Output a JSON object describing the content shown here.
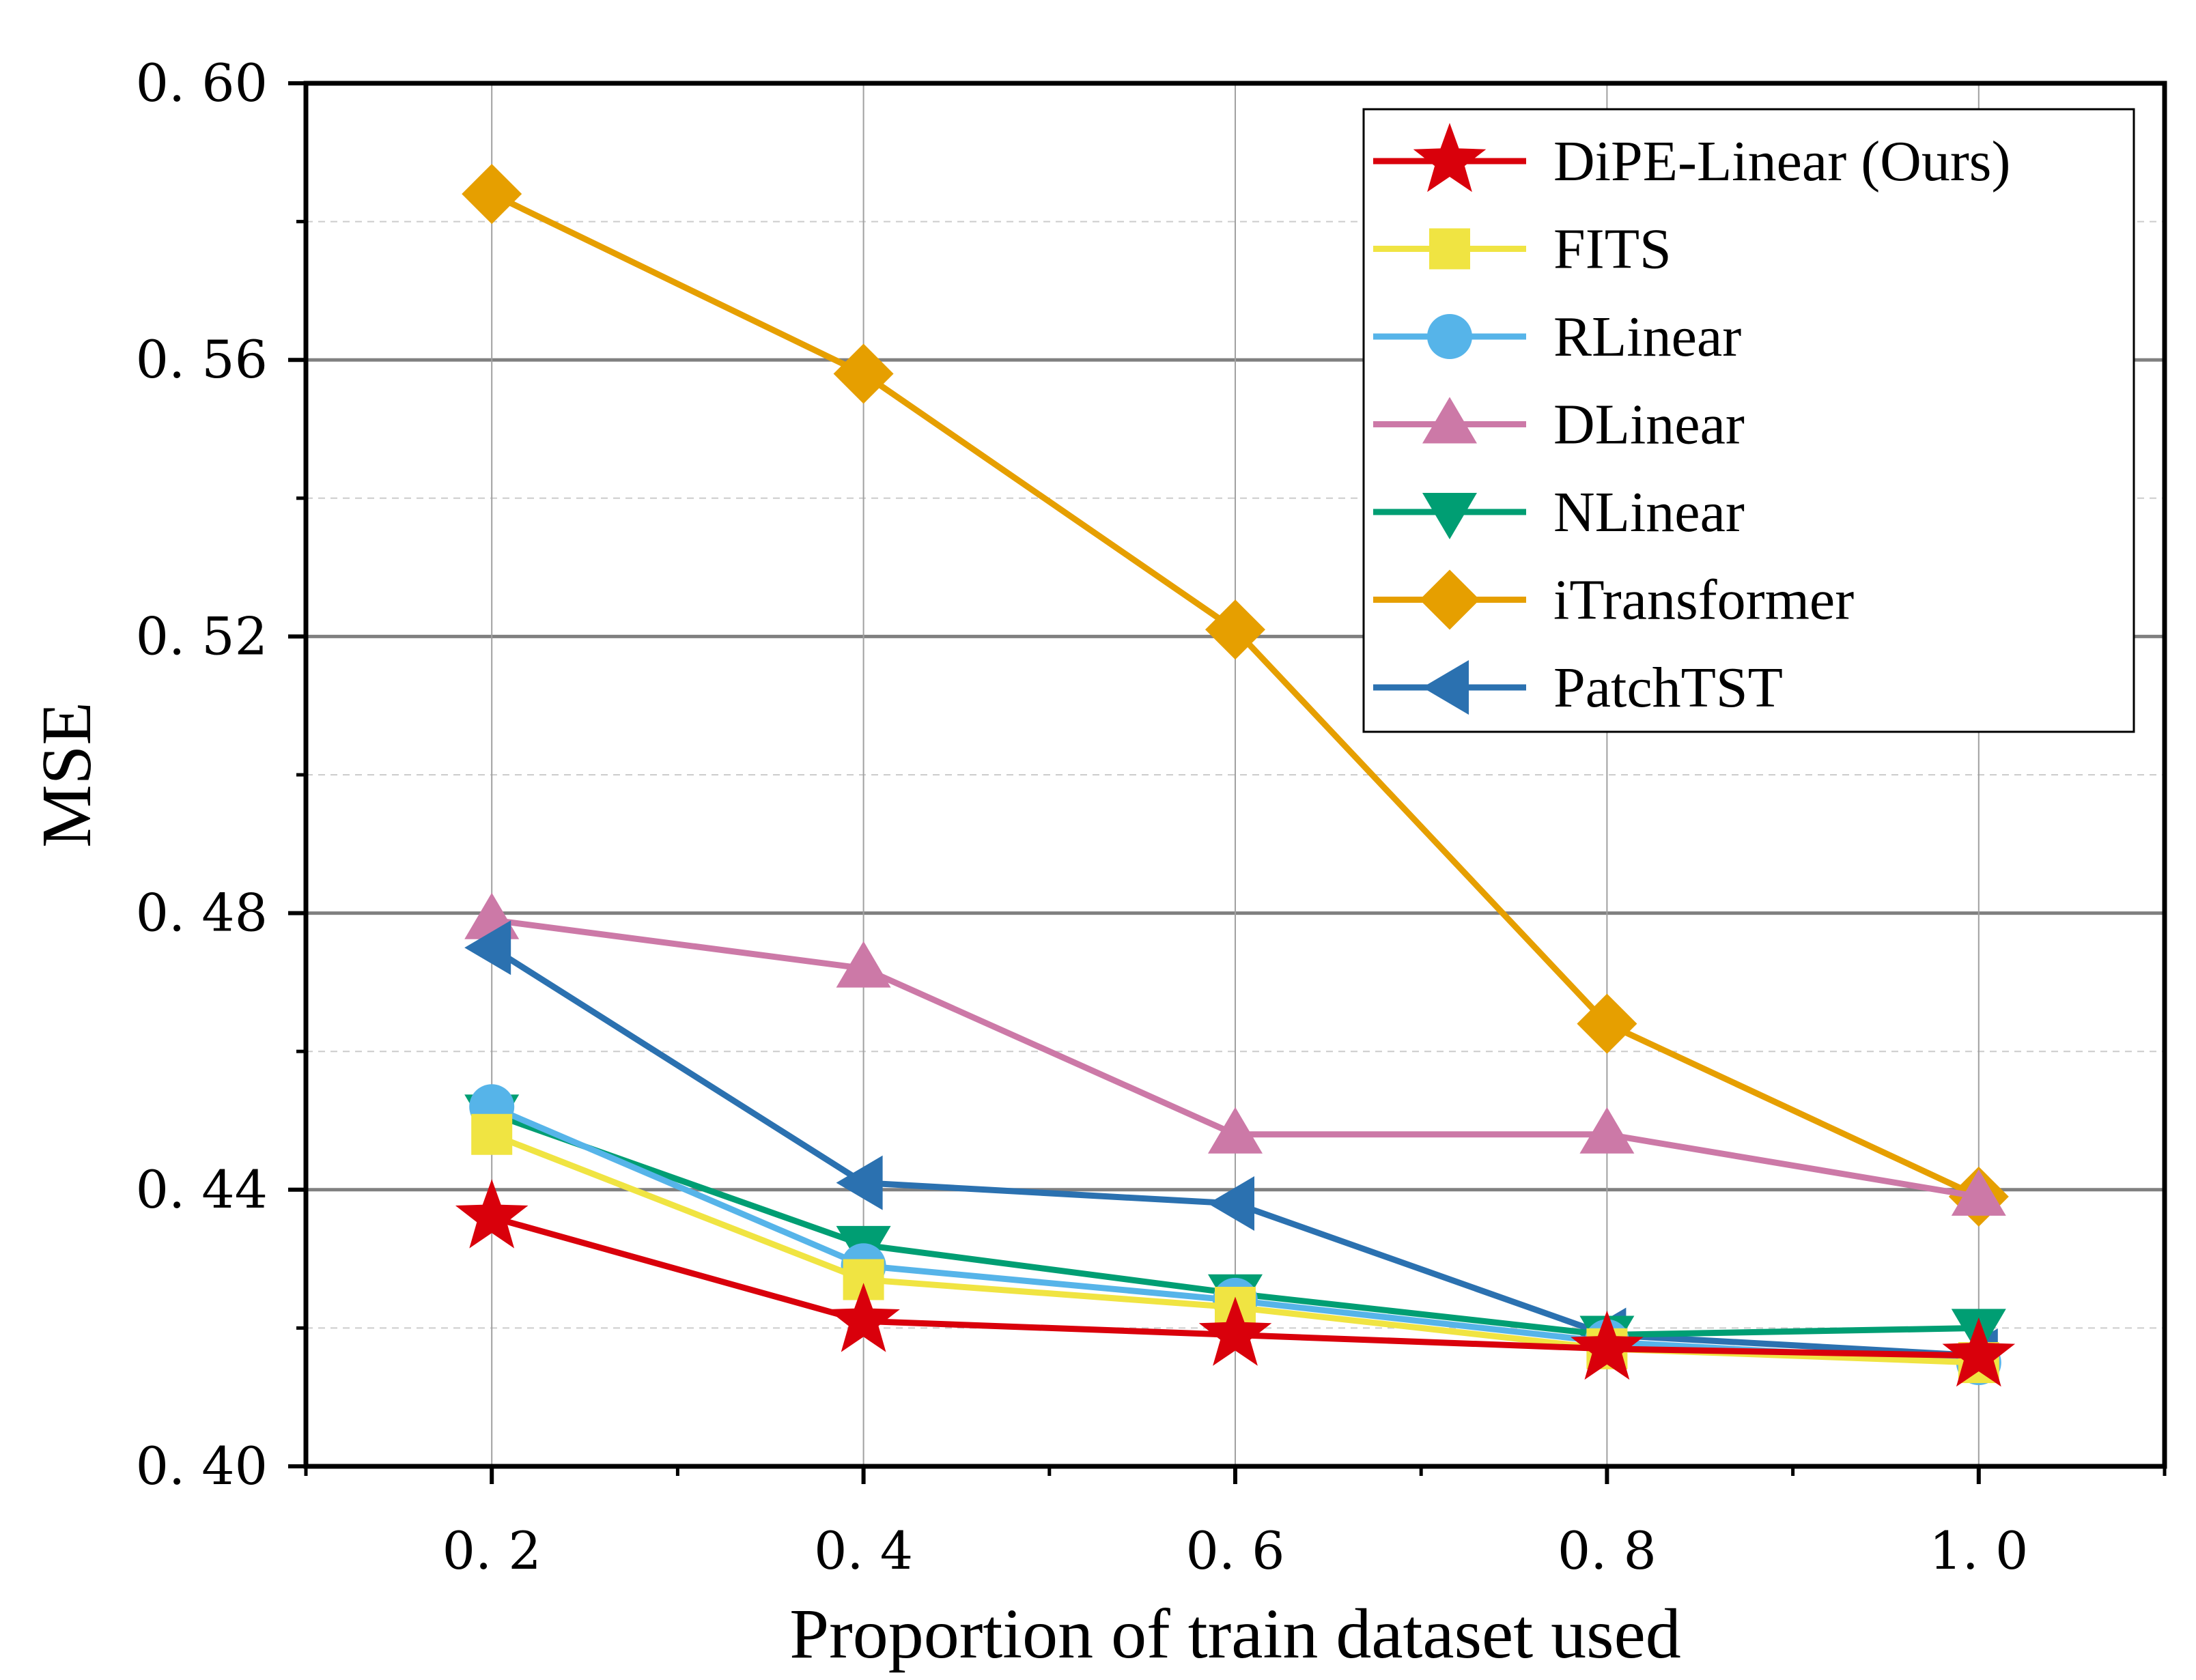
{
  "chart_data": {
    "type": "line",
    "title": "",
    "xlabel": "Proportion of train dataset used",
    "ylabel": "MSE",
    "x": [
      0.2,
      0.4,
      0.6,
      0.8,
      1.0
    ],
    "x_tick_labels": [
      "0. 2",
      "0. 4",
      "0. 6",
      "0. 8",
      "1. 0"
    ],
    "xlim": [
      0.1,
      1.1
    ],
    "ylim": [
      0.4,
      0.6
    ],
    "y_ticks": [
      0.4,
      0.44,
      0.48,
      0.52,
      0.56,
      0.6
    ],
    "y_tick_labels": [
      "0. 40",
      "0. 44",
      "0. 48",
      "0. 52",
      "0. 56",
      "0. 60"
    ],
    "y_minor_ticks": [
      0.42,
      0.46,
      0.5,
      0.54,
      0.58
    ],
    "grid": true,
    "legend_position": "top-right",
    "series": [
      {
        "name": "DiPE-Linear (Ours)",
        "color": "#d9000b",
        "marker": "star",
        "values": [
          0.436,
          0.421,
          0.419,
          0.417,
          0.416
        ]
      },
      {
        "name": "FITS",
        "color": "#f0e442",
        "marker": "square",
        "values": [
          0.448,
          0.427,
          0.423,
          0.417,
          0.415
        ]
      },
      {
        "name": "RLinear",
        "color": "#56b4e9",
        "marker": "circle",
        "values": [
          0.452,
          0.429,
          0.424,
          0.418,
          0.415
        ]
      },
      {
        "name": "DLinear",
        "color": "#cc79a7",
        "marker": "triangle-up",
        "values": [
          0.479,
          0.472,
          0.448,
          0.448,
          0.439
        ]
      },
      {
        "name": "NLinear",
        "color": "#009e73",
        "marker": "triangle-down",
        "values": [
          0.451,
          0.432,
          0.425,
          0.419,
          0.42
        ]
      },
      {
        "name": "iTransformer",
        "color": "#e69f00",
        "marker": "diamond",
        "values": [
          0.584,
          0.558,
          0.521,
          0.464,
          0.439
        ]
      },
      {
        "name": "PatchTST",
        "color": "#2b71b0",
        "marker": "triangle-left",
        "values": [
          0.475,
          0.441,
          0.438,
          0.419,
          0.416
        ]
      }
    ]
  }
}
